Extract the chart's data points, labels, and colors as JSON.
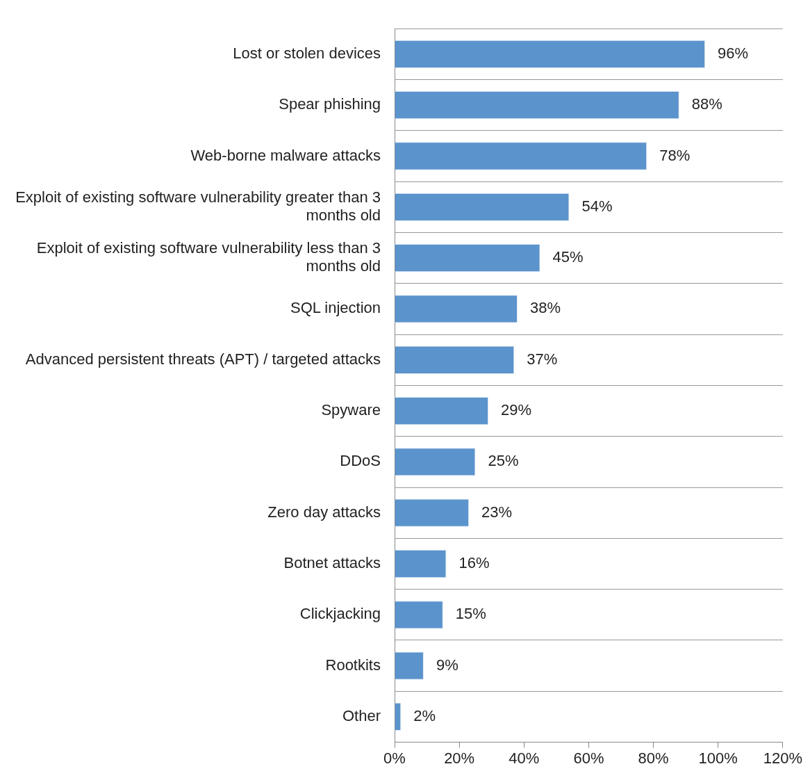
{
  "chart_data": {
    "type": "bar",
    "orientation": "horizontal",
    "categories": [
      "Lost or stolen devices",
      "Spear phishing",
      "Web-borne malware attacks",
      "Exploit of existing software vulnerability greater than 3 months old",
      "Exploit of existing software vulnerability less than 3 months old",
      "SQL injection",
      "Advanced persistent threats (APT) / targeted attacks",
      "Spyware",
      "DDoS",
      "Zero day attacks",
      "Botnet attacks",
      "Clickjacking",
      "Rootkits",
      "Other"
    ],
    "values": [
      96,
      88,
      78,
      54,
      45,
      38,
      37,
      29,
      25,
      23,
      16,
      15,
      9,
      2
    ],
    "value_labels": [
      "96%",
      "88%",
      "78%",
      "54%",
      "45%",
      "38%",
      "37%",
      "29%",
      "25%",
      "23%",
      "16%",
      "15%",
      "9%",
      "2%"
    ],
    "color": "#5b93cc",
    "xlim": [
      0,
      120
    ],
    "xticks": [
      {
        "value": 0,
        "label": "0%"
      },
      {
        "value": 20,
        "label": "20%"
      },
      {
        "value": 40,
        "label": "40%"
      },
      {
        "value": 60,
        "label": "60%"
      },
      {
        "value": 80,
        "label": "80%"
      },
      {
        "value": 100,
        "label": "100%"
      },
      {
        "value": 120,
        "label": "120%"
      }
    ],
    "grid": "y",
    "legend": false
  }
}
